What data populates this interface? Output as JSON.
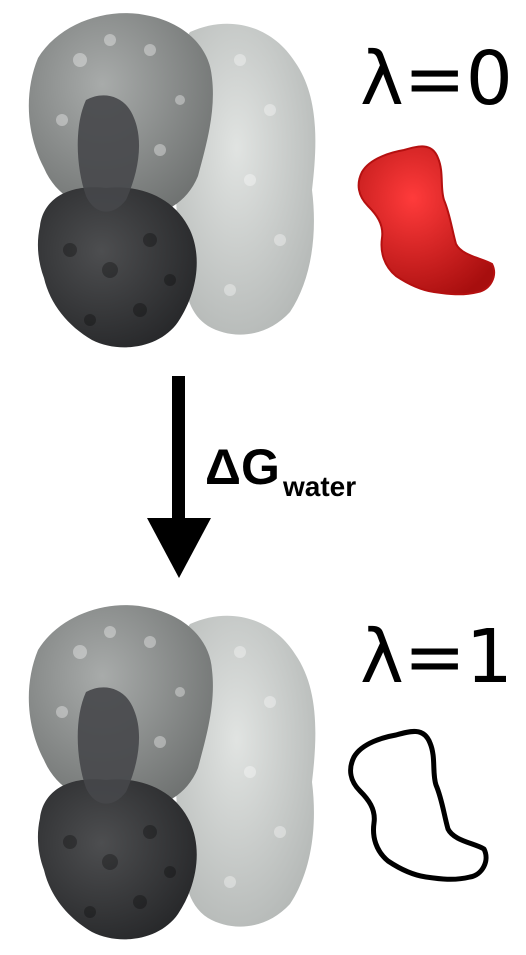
{
  "states": [
    {
      "lambda_label": "λ=0",
      "ligand": "coupled",
      "ligand_color": "#d81a1a"
    },
    {
      "lambda_label": "λ=1",
      "ligand": "decoupled",
      "ligand_outline_color": "#000000"
    }
  ],
  "transition": {
    "symbol": "ΔG",
    "subscript": "water",
    "arrow_direction": "down"
  },
  "colors": {
    "protein_light": "#c4c8c6",
    "protein_mid": "#8a8d8c",
    "protein_dark": "#3b3c3e",
    "ligand_red": "#d81a1a",
    "arrow": "#000000"
  }
}
